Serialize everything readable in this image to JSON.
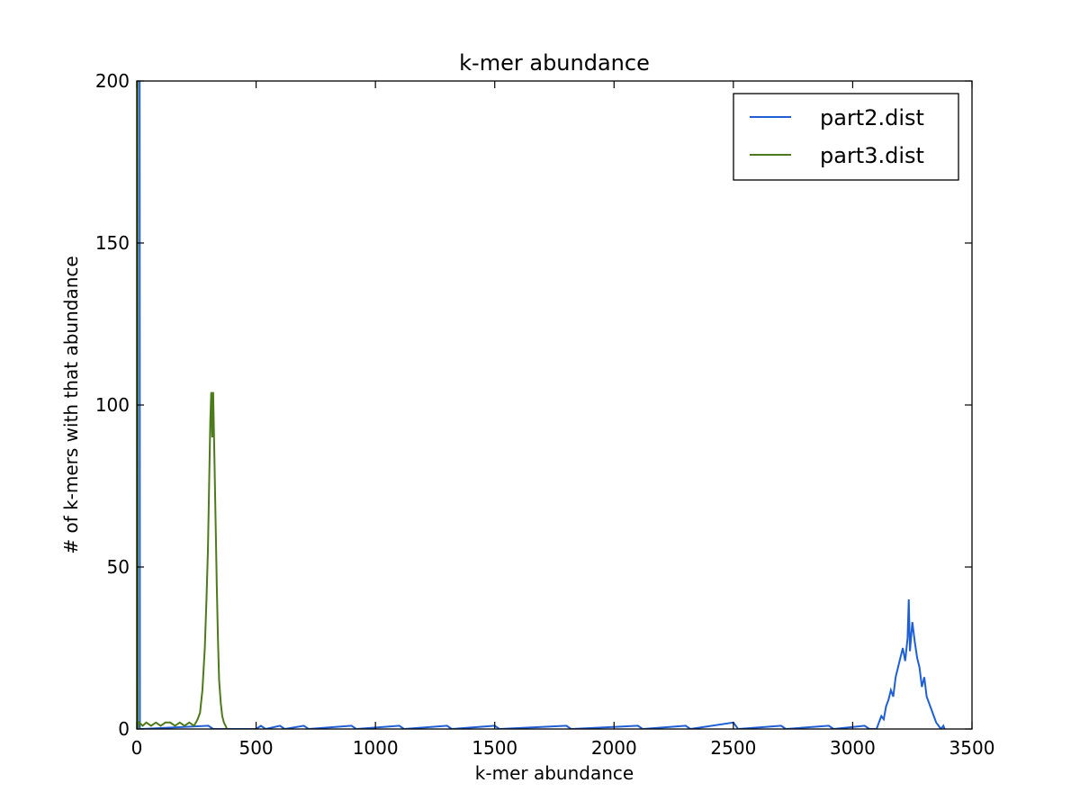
{
  "chart_data": {
    "type": "line",
    "title": "k-mer abundance",
    "xlabel": "k-mer abundance",
    "ylabel": "# of k-mers with that abundance",
    "xlim": [
      0,
      3500
    ],
    "ylim": [
      0,
      200
    ],
    "xticks": [
      0,
      500,
      1000,
      1500,
      2000,
      2500,
      3000,
      3500
    ],
    "yticks": [
      0,
      50,
      100,
      150,
      200
    ],
    "grid": false,
    "legend_position": "top-right",
    "series": [
      {
        "name": "part2.dist",
        "color": "#1f5fd6",
        "points": [
          [
            1,
            200
          ],
          [
            12,
            200
          ],
          [
            13,
            0
          ],
          [
            20,
            0
          ],
          [
            300,
            1
          ],
          [
            320,
            0
          ],
          [
            500,
            0
          ],
          [
            520,
            1
          ],
          [
            540,
            0
          ],
          [
            600,
            1
          ],
          [
            620,
            0
          ],
          [
            700,
            1
          ],
          [
            720,
            0
          ],
          [
            900,
            1
          ],
          [
            920,
            0
          ],
          [
            1100,
            1
          ],
          [
            1120,
            0
          ],
          [
            1300,
            1
          ],
          [
            1320,
            0
          ],
          [
            1500,
            1
          ],
          [
            1520,
            0
          ],
          [
            1800,
            1
          ],
          [
            1820,
            0
          ],
          [
            2100,
            1
          ],
          [
            2120,
            0
          ],
          [
            2300,
            1
          ],
          [
            2320,
            0
          ],
          [
            2500,
            2
          ],
          [
            2520,
            0
          ],
          [
            2700,
            1
          ],
          [
            2720,
            0
          ],
          [
            2900,
            1
          ],
          [
            2920,
            0
          ],
          [
            3050,
            1
          ],
          [
            3070,
            0
          ],
          [
            3100,
            0
          ],
          [
            3110,
            2
          ],
          [
            3120,
            4
          ],
          [
            3130,
            3
          ],
          [
            3140,
            7
          ],
          [
            3150,
            9
          ],
          [
            3160,
            12
          ],
          [
            3170,
            10
          ],
          [
            3180,
            16
          ],
          [
            3190,
            19
          ],
          [
            3200,
            22
          ],
          [
            3210,
            25
          ],
          [
            3220,
            21
          ],
          [
            3230,
            28
          ],
          [
            3235,
            40
          ],
          [
            3240,
            24
          ],
          [
            3250,
            33
          ],
          [
            3260,
            27
          ],
          [
            3270,
            22
          ],
          [
            3280,
            19
          ],
          [
            3290,
            13
          ],
          [
            3300,
            16
          ],
          [
            3310,
            10
          ],
          [
            3320,
            8
          ],
          [
            3330,
            6
          ],
          [
            3340,
            4
          ],
          [
            3350,
            2
          ],
          [
            3360,
            1
          ],
          [
            3370,
            0
          ],
          [
            3380,
            1
          ],
          [
            3385,
            0
          ]
        ]
      },
      {
        "name": "part3.dist",
        "color": "#4d7a1a",
        "points": [
          [
            1,
            200
          ],
          [
            3,
            200
          ],
          [
            4,
            0
          ],
          [
            10,
            2
          ],
          [
            25,
            1
          ],
          [
            40,
            2
          ],
          [
            60,
            1
          ],
          [
            80,
            2
          ],
          [
            100,
            1
          ],
          [
            120,
            2
          ],
          [
            140,
            2
          ],
          [
            160,
            1
          ],
          [
            180,
            2
          ],
          [
            200,
            1
          ],
          [
            220,
            2
          ],
          [
            240,
            1
          ],
          [
            255,
            3
          ],
          [
            265,
            5
          ],
          [
            275,
            12
          ],
          [
            285,
            25
          ],
          [
            292,
            40
          ],
          [
            298,
            55
          ],
          [
            303,
            75
          ],
          [
            308,
            95
          ],
          [
            312,
            104
          ],
          [
            316,
            90
          ],
          [
            320,
            104
          ],
          [
            325,
            85
          ],
          [
            330,
            65
          ],
          [
            335,
            45
          ],
          [
            340,
            28
          ],
          [
            345,
            15
          ],
          [
            352,
            8
          ],
          [
            358,
            4
          ],
          [
            365,
            2
          ],
          [
            372,
            1
          ],
          [
            378,
            0
          ]
        ]
      }
    ]
  }
}
